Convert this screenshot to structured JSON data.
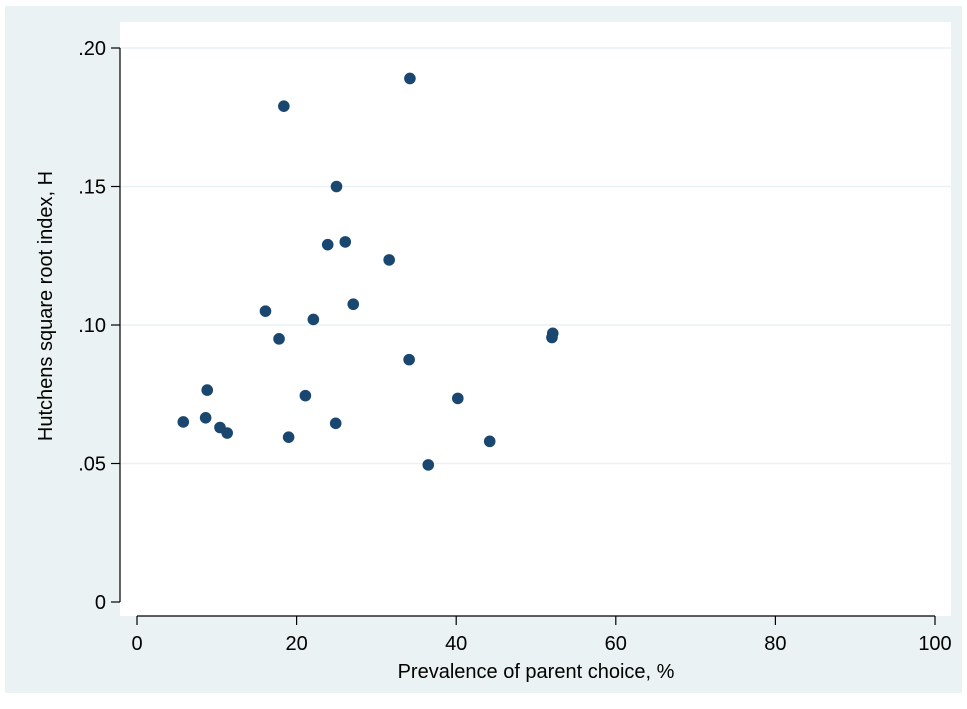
{
  "chart_data": {
    "type": "scatter",
    "title": "",
    "xlabel": "Prevalence of parent choice, %",
    "ylabel": "Hutchens square root index, H",
    "xlim": [
      0,
      100
    ],
    "ylim": [
      0,
      0.2
    ],
    "x_ticks": [
      {
        "value": 0,
        "label": "0"
      },
      {
        "value": 20,
        "label": "20"
      },
      {
        "value": 40,
        "label": "40"
      },
      {
        "value": 60,
        "label": "60"
      },
      {
        "value": 80,
        "label": "80"
      },
      {
        "value": 100,
        "label": "100"
      }
    ],
    "y_ticks": [
      {
        "value": 0,
        "label": "0"
      },
      {
        "value": 0.05,
        "label": ".05"
      },
      {
        "value": 0.1,
        "label": ".10"
      },
      {
        "value": 0.15,
        "label": ".15"
      },
      {
        "value": 0.2,
        "label": ".20"
      }
    ],
    "grid": "horizontal",
    "colors": {
      "background": "#eaf2f3",
      "plot_area": "#ffffff",
      "gridline": "#eaf2f3",
      "marker": "#1a476f"
    },
    "points": [
      {
        "x": 5.8,
        "y": 0.065
      },
      {
        "x": 8.6,
        "y": 0.0665
      },
      {
        "x": 8.8,
        "y": 0.0765
      },
      {
        "x": 10.4,
        "y": 0.063
      },
      {
        "x": 11.3,
        "y": 0.061
      },
      {
        "x": 16.1,
        "y": 0.105
      },
      {
        "x": 17.8,
        "y": 0.095
      },
      {
        "x": 18.4,
        "y": 0.179
      },
      {
        "x": 19.0,
        "y": 0.0595
      },
      {
        "x": 21.1,
        "y": 0.0745
      },
      {
        "x": 22.1,
        "y": 0.102
      },
      {
        "x": 23.9,
        "y": 0.129
      },
      {
        "x": 24.9,
        "y": 0.0645
      },
      {
        "x": 25.0,
        "y": 0.15
      },
      {
        "x": 26.1,
        "y": 0.13
      },
      {
        "x": 27.1,
        "y": 0.1075
      },
      {
        "x": 31.6,
        "y": 0.1235
      },
      {
        "x": 34.1,
        "y": 0.0875
      },
      {
        "x": 34.2,
        "y": 0.189
      },
      {
        "x": 36.5,
        "y": 0.0495
      },
      {
        "x": 40.2,
        "y": 0.0735
      },
      {
        "x": 44.2,
        "y": 0.058
      },
      {
        "x": 52.0,
        "y": 0.0955
      },
      {
        "x": 52.1,
        "y": 0.097
      }
    ]
  }
}
